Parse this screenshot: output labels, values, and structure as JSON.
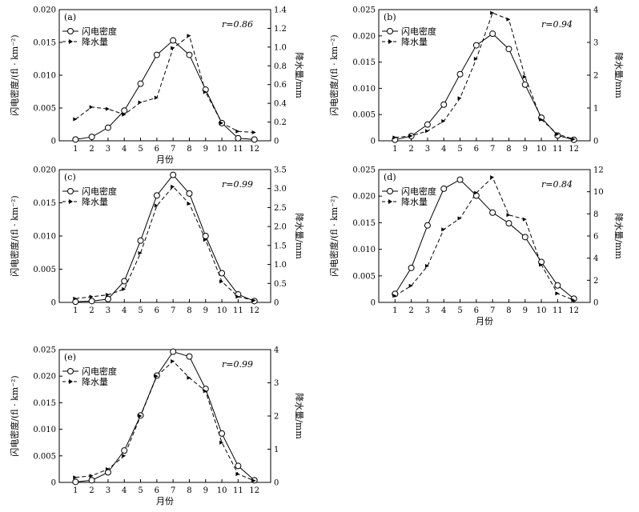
{
  "chart_data": [
    {
      "panel_label": "(a)",
      "type": "line",
      "r_label": "r=0.86",
      "x": [
        1,
        2,
        3,
        4,
        5,
        6,
        7,
        8,
        9,
        10,
        11,
        12
      ],
      "xlabel": "月份",
      "ylabel_left": "闪电密度/(fl · km⁻²)",
      "ylabel_right": "降水量/mm",
      "ylim_left": [
        0,
        0.02
      ],
      "ylim_right": [
        0,
        1.4
      ],
      "yticks_left": [
        "0",
        "0.005",
        "0.010",
        "0.015",
        "0.020"
      ],
      "yticks_right": [
        "0",
        "0.2",
        "0.4",
        "0.6",
        "0.8",
        "1.0",
        "1.2",
        "1.4"
      ],
      "series": [
        {
          "name": "闪电密度",
          "axis": "left",
          "style": "solid-circle",
          "values": [
            0.0002,
            0.0006,
            0.002,
            0.0046,
            0.0087,
            0.0131,
            0.0153,
            0.0131,
            0.0078,
            0.0027,
            0.0004,
            0.0002
          ]
        },
        {
          "name": "降水量",
          "axis": "right",
          "style": "dashed-arrow",
          "values": [
            0.23,
            0.36,
            0.34,
            0.28,
            0.41,
            0.46,
            0.99,
            1.12,
            0.52,
            0.19,
            0.1,
            0.09
          ]
        }
      ]
    },
    {
      "panel_label": "(b)",
      "type": "line",
      "r_label": "r=0.94",
      "x": [
        1,
        2,
        3,
        4,
        5,
        6,
        7,
        8,
        9,
        10,
        11,
        12
      ],
      "xlabel": "",
      "ylabel_left": "闪电密度/(fl · km⁻²)",
      "ylabel_right": "降水量/mm",
      "ylim_left": [
        0,
        0.025
      ],
      "ylim_right": [
        0,
        4
      ],
      "yticks_left": [
        "0",
        "0.005",
        "0.010",
        "0.015",
        "0.020",
        "0.025"
      ],
      "yticks_right": [
        "0",
        "1",
        "2",
        "3",
        "4"
      ],
      "series": [
        {
          "name": "闪电密度",
          "axis": "left",
          "style": "solid-circle",
          "values": [
            0.0002,
            0.0009,
            0.0031,
            0.0069,
            0.0127,
            0.0182,
            0.0204,
            0.0175,
            0.0107,
            0.0044,
            0.001,
            0.0002
          ]
        },
        {
          "name": "降水量",
          "axis": "right",
          "style": "dashed-arrow",
          "values": [
            0.1,
            0.15,
            0.3,
            0.6,
            1.3,
            2.5,
            3.9,
            3.7,
            1.95,
            0.65,
            0.2,
            0.05
          ]
        }
      ]
    },
    {
      "panel_label": "(c)",
      "type": "line",
      "r_label": "r=0.99",
      "x": [
        1,
        2,
        3,
        4,
        5,
        6,
        7,
        8,
        9,
        10,
        11,
        12
      ],
      "xlabel": "",
      "ylabel_left": "闪电密度/(fl · km⁻²)",
      "ylabel_right": "降水量/mm",
      "ylim_left": [
        0,
        0.02
      ],
      "ylim_right": [
        0,
        3.5
      ],
      "yticks_left": [
        "0",
        "0.005",
        "0.010",
        "0.015",
        "0.020"
      ],
      "yticks_right": [
        "0",
        "0.5",
        "1.0",
        "1.5",
        "2.0",
        "2.5",
        "3.0",
        "3.5"
      ],
      "series": [
        {
          "name": "闪电密度",
          "axis": "left",
          "style": "solid-circle",
          "values": [
            0.0001,
            0.0002,
            0.0005,
            0.0032,
            0.0093,
            0.0161,
            0.0192,
            0.0164,
            0.01,
            0.0044,
            0.0012,
            0.0002
          ]
        },
        {
          "name": "降水量",
          "axis": "right",
          "style": "dashed-arrow",
          "values": [
            0.1,
            0.15,
            0.2,
            0.35,
            1.3,
            2.55,
            3.05,
            2.6,
            1.65,
            0.55,
            0.15,
            0.05
          ]
        }
      ]
    },
    {
      "panel_label": "(d)",
      "type": "line",
      "r_label": "r=0.84",
      "x": [
        1,
        2,
        3,
        4,
        5,
        6,
        7,
        8,
        9,
        10,
        11,
        12
      ],
      "xlabel": "月份",
      "ylabel_left": "闪电密度/(fl · km⁻²)",
      "ylabel_right": "降水量/mm",
      "ylim_left": [
        0,
        0.025
      ],
      "ylim_right": [
        0,
        12
      ],
      "yticks_left": [
        "0",
        "0.005",
        "0.010",
        "0.015",
        "0.020",
        "0.025"
      ],
      "yticks_right": [
        "0",
        "2",
        "4",
        "6",
        "8",
        "10",
        "12"
      ],
      "series": [
        {
          "name": "闪电密度",
          "axis": "left",
          "style": "solid-circle",
          "values": [
            0.0016,
            0.0065,
            0.0145,
            0.0214,
            0.0231,
            0.0201,
            0.0169,
            0.0149,
            0.0123,
            0.0076,
            0.0032,
            0.0007
          ]
        },
        {
          "name": "降水量",
          "axis": "right",
          "style": "dashed-arrow",
          "values": [
            0.6,
            1.5,
            3.3,
            6.6,
            7.6,
            9.9,
            11.3,
            7.9,
            7.5,
            3.4,
            0.8,
            0.2
          ]
        }
      ]
    },
    {
      "panel_label": "(e)",
      "type": "line",
      "r_label": "r=0.99",
      "x": [
        1,
        2,
        3,
        4,
        5,
        6,
        7,
        8,
        9,
        10,
        11,
        12
      ],
      "xlabel": "月份",
      "ylabel_left": "闪电密度/(fl · km⁻²)",
      "ylabel_right": "降水量/mm",
      "ylim_left": [
        0,
        0.025
      ],
      "ylim_right": [
        0,
        4
      ],
      "yticks_left": [
        "0",
        "0.005",
        "0.010",
        "0.015",
        "0.020",
        "0.025"
      ],
      "yticks_right": [
        "0",
        "1",
        "2",
        "3",
        "4"
      ],
      "series": [
        {
          "name": "闪电密度",
          "axis": "left",
          "style": "solid-circle",
          "values": [
            0.0001,
            0.0004,
            0.0019,
            0.006,
            0.0126,
            0.0201,
            0.0246,
            0.0237,
            0.0176,
            0.0092,
            0.0031,
            0.0004
          ]
        },
        {
          "name": "降水量",
          "axis": "right",
          "style": "dashed-arrow",
          "values": [
            0.15,
            0.2,
            0.4,
            0.8,
            2.0,
            3.2,
            3.65,
            3.15,
            2.75,
            1.2,
            0.25,
            0.05
          ]
        }
      ]
    }
  ]
}
